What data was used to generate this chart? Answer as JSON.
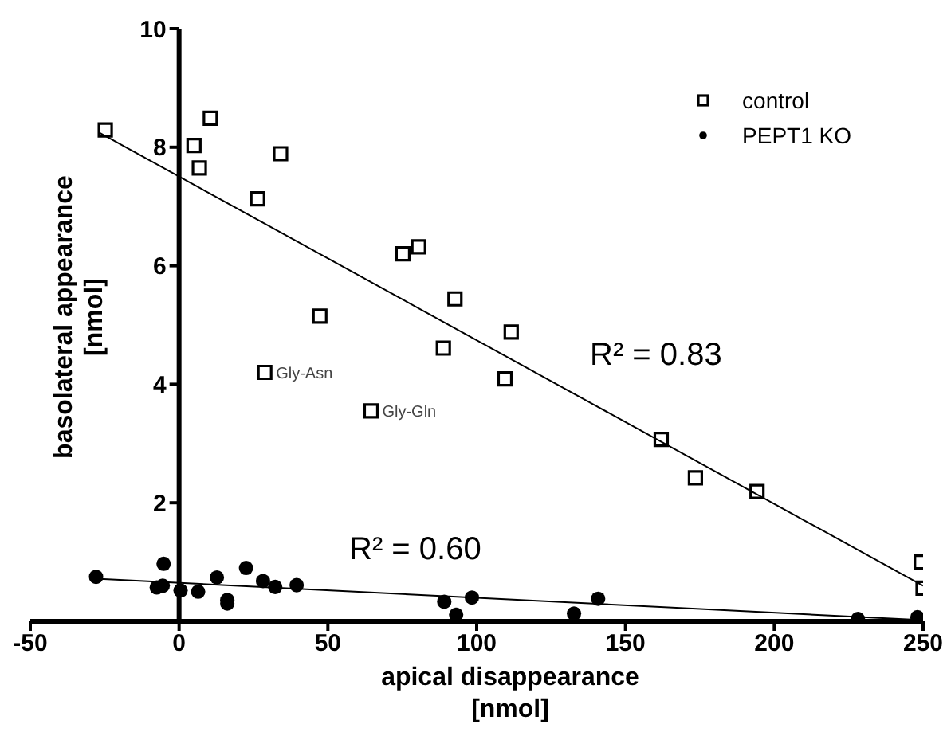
{
  "chart_data": {
    "type": "scatter",
    "xlabel": "apical disappearance [nmol]",
    "ylabel": "basolateral appearance [nmol]",
    "xlim": [
      -50,
      250
    ],
    "xticks": [
      -50,
      0,
      50,
      100,
      150,
      200,
      250
    ],
    "ylim": [
      0,
      10
    ],
    "yticks": [
      2,
      4,
      6,
      8,
      10
    ],
    "grid": false,
    "legend": "top right",
    "series": [
      {
        "name": "control",
        "color": "#000000",
        "marker": "square",
        "x": [
          -24.8,
          5.0,
          6.8,
          10.5,
          34.1,
          26.4,
          75.2,
          80.5,
          47.3,
          92.7,
          88.8,
          28.8,
          64.5,
          111.6,
          109.5,
          162,
          173.5,
          194.2,
          249.4,
          250
        ],
        "values": [
          8.29,
          8.03,
          7.65,
          8.49,
          7.89,
          7.13,
          6.2,
          6.32,
          5.15,
          5.44,
          4.61,
          4.2,
          3.55,
          4.88,
          4.09,
          3.07,
          2.42,
          2.19,
          1.0,
          0.56
        ]
      },
      {
        "name": "PEPT1 KO",
        "color": "#000000",
        "marker": "circle",
        "x": [
          -27.9,
          -5.2,
          -7.5,
          -5.5,
          0.5,
          6.4,
          12.7,
          16.2,
          16.2,
          22.5,
          28.2,
          32.3,
          39.5,
          89.1,
          93.1,
          98.4,
          132.7,
          140.8,
          228.1,
          248.1
        ],
        "values": [
          0.75,
          0.97,
          0.57,
          0.6,
          0.52,
          0.5,
          0.74,
          0.36,
          0.3,
          0.9,
          0.68,
          0.58,
          0.61,
          0.33,
          0.11,
          0.4,
          0.13,
          0.38,
          0.04,
          0.07
        ]
      },
      {
        "type": "line",
        "color": "#000000",
        "marker": "none",
        "x": [
          -27,
          250
        ],
        "values": [
          8.25,
          0.6
        ]
      },
      {
        "type": "line",
        "color": "#000000",
        "marker": "none",
        "x": [
          -28,
          250
        ],
        "values": [
          0.72,
          0.02
        ]
      }
    ],
    "annotations": [
      {
        "text": "Gly-Asn",
        "x": 28.8,
        "y": 4.2
      },
      {
        "text": "Gly-Gln",
        "x": 64.5,
        "y": 3.55
      },
      "R² = 0.83",
      "R² = 0.60"
    ]
  }
}
